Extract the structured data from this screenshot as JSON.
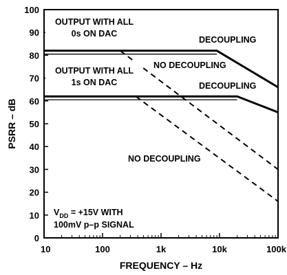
{
  "chart_data": {
    "type": "line",
    "xscale": "log",
    "xlabel": "FREQUENCY – Hz",
    "ylabel": "PSRR – dB",
    "xlim": [
      10,
      100000
    ],
    "ylim": [
      0,
      100
    ],
    "grid": false,
    "xticks": [
      {
        "value": 10,
        "label": "10"
      },
      {
        "value": 100,
        "label": "100"
      },
      {
        "value": 1000,
        "label": "1k"
      },
      {
        "value": 10000,
        "label": "10k"
      },
      {
        "value": 100000,
        "label": "100k"
      }
    ],
    "yticks": [
      0,
      10,
      20,
      30,
      40,
      50,
      60,
      70,
      80,
      90,
      100
    ],
    "series": [
      {
        "style": "solid-thick",
        "x": [
          10,
          9000,
          100000
        ],
        "y": [
          82,
          82,
          66
        ]
      },
      {
        "style": "solid-thin",
        "x": [
          10,
          9000
        ],
        "y": [
          80.5,
          80.5
        ]
      },
      {
        "style": "dashed",
        "x": [
          200,
          100000
        ],
        "y": [
          82,
          30
        ]
      },
      {
        "style": "solid-thick",
        "x": [
          10,
          20000,
          100000
        ],
        "y": [
          62,
          62,
          55
        ]
      },
      {
        "style": "solid-thin",
        "x": [
          10,
          20000
        ],
        "y": [
          60.5,
          60.5
        ]
      },
      {
        "style": "dashed",
        "x": [
          370,
          100000
        ],
        "y": [
          62,
          16
        ]
      }
    ],
    "annotations": [
      {
        "id": "out0a",
        "text": "OUTPUT WITH ALL"
      },
      {
        "id": "out0b",
        "text": "0s ON DAC"
      },
      {
        "id": "out1a",
        "text": "OUTPUT WITH ALL"
      },
      {
        "id": "out1b",
        "text": "1s ON DAC"
      },
      {
        "id": "dec1",
        "text": "DECOUPLING"
      },
      {
        "id": "nodec1",
        "text": "NO DECOUPLING"
      },
      {
        "id": "dec2",
        "text": "DECOUPLING"
      },
      {
        "id": "nodec2",
        "text": "NO DECOUPLING"
      },
      {
        "id": "vdd_v",
        "text": "V"
      },
      {
        "id": "vdd_sub",
        "text": "DD"
      },
      {
        "id": "vdd_rest",
        "text": " = +15V WITH"
      },
      {
        "id": "signal",
        "text": "100mV p–p SIGNAL"
      }
    ]
  }
}
